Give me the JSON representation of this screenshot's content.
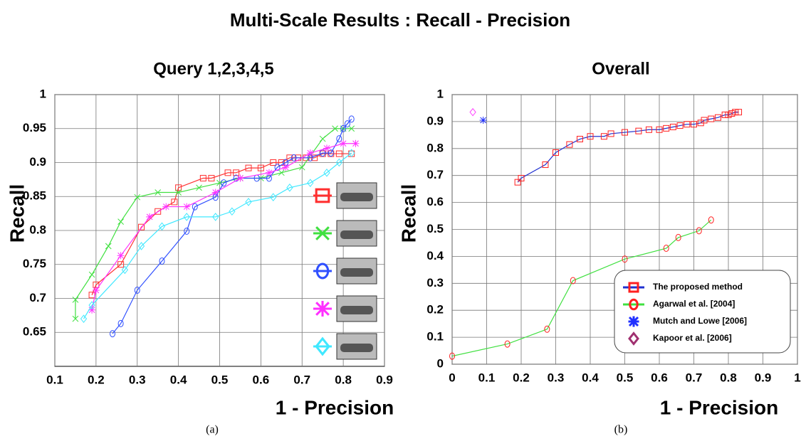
{
  "title": "Multi-Scale Results : Recall - Precision",
  "captions": [
    "(a)",
    "(b)"
  ],
  "chart_data": [
    {
      "type": "line",
      "title": "Query 1,2,3,4,5",
      "xlabel": "1 - Precision",
      "ylabel": "Recall",
      "xlim": [
        0.1,
        0.9
      ],
      "ylim": [
        0.6,
        1
      ],
      "xticks": [
        0.1,
        0.2,
        0.3,
        0.4,
        0.5,
        0.6,
        0.7,
        0.8,
        0.9
      ],
      "yticks": [
        0.65,
        0.7,
        0.75,
        0.8,
        0.85,
        0.9,
        0.95,
        1
      ],
      "grid": true,
      "legend": "right",
      "series": [
        {
          "color": "#ff3030",
          "marker": "square",
          "x": [
            0.19,
            0.2,
            0.26,
            0.31,
            0.35,
            0.39,
            0.4,
            0.46,
            0.48,
            0.52,
            0.54,
            0.57,
            0.6,
            0.63,
            0.65,
            0.67,
            0.69,
            0.71,
            0.73,
            0.75,
            0.77,
            0.79,
            0.82
          ],
          "values": [
            0.705,
            0.72,
            0.75,
            0.805,
            0.828,
            0.842,
            0.863,
            0.877,
            0.877,
            0.885,
            0.885,
            0.892,
            0.892,
            0.9,
            0.9,
            0.907,
            0.907,
            0.907,
            0.907,
            0.913,
            0.913,
            0.913,
            0.913
          ]
        },
        {
          "color": "#40e040",
          "marker": "x",
          "x": [
            0.15,
            0.15,
            0.19,
            0.23,
            0.26,
            0.3,
            0.35,
            0.4,
            0.45,
            0.5,
            0.55,
            0.6,
            0.65,
            0.7,
            0.75,
            0.78,
            0.8,
            0.82
          ],
          "values": [
            0.67,
            0.698,
            0.735,
            0.777,
            0.813,
            0.849,
            0.856,
            0.856,
            0.863,
            0.87,
            0.877,
            0.877,
            0.885,
            0.893,
            0.935,
            0.95,
            0.95,
            0.95
          ]
        },
        {
          "color": "#3050ff",
          "marker": "circle",
          "x": [
            0.24,
            0.26,
            0.3,
            0.36,
            0.42,
            0.44,
            0.49,
            0.51,
            0.54,
            0.59,
            0.62,
            0.64,
            0.66,
            0.68,
            0.72,
            0.75,
            0.77,
            0.79,
            0.8,
            0.81,
            0.82
          ],
          "values": [
            0.648,
            0.663,
            0.712,
            0.755,
            0.799,
            0.835,
            0.849,
            0.87,
            0.877,
            0.877,
            0.877,
            0.893,
            0.9,
            0.907,
            0.907,
            0.914,
            0.914,
            0.935,
            0.95,
            0.957,
            0.964
          ]
        },
        {
          "color": "#ff30ff",
          "marker": "star",
          "x": [
            0.19,
            0.2,
            0.26,
            0.33,
            0.37,
            0.42,
            0.49,
            0.55,
            0.62,
            0.66,
            0.72,
            0.76,
            0.8,
            0.83
          ],
          "values": [
            0.683,
            0.712,
            0.763,
            0.82,
            0.835,
            0.835,
            0.856,
            0.877,
            0.885,
            0.893,
            0.914,
            0.921,
            0.928,
            0.928
          ]
        },
        {
          "color": "#40e8ff",
          "marker": "diamond",
          "x": [
            0.17,
            0.19,
            0.27,
            0.31,
            0.36,
            0.42,
            0.49,
            0.53,
            0.57,
            0.63,
            0.67,
            0.72,
            0.76,
            0.79,
            0.82
          ],
          "values": [
            0.67,
            0.69,
            0.742,
            0.777,
            0.806,
            0.82,
            0.82,
            0.828,
            0.842,
            0.849,
            0.863,
            0.87,
            0.885,
            0.9,
            0.914
          ]
        }
      ]
    },
    {
      "type": "line",
      "title": "Overall",
      "xlabel": "1 - Precision",
      "ylabel": "Recall",
      "xlim": [
        0,
        1
      ],
      "ylim": [
        0,
        1
      ],
      "xticks": [
        0,
        0.1,
        0.2,
        0.3,
        0.4,
        0.5,
        0.6,
        0.7,
        0.8,
        0.9,
        1
      ],
      "yticks": [
        0,
        0.1,
        0.2,
        0.3,
        0.4,
        0.5,
        0.6,
        0.7,
        0.8,
        0.9,
        1
      ],
      "grid": true,
      "legend": "lower right",
      "series": [
        {
          "name": "The proposed method",
          "color": "#2030d0",
          "marker": "square",
          "marker_color": "#ff2020",
          "x": [
            0.19,
            0.2,
            0.27,
            0.3,
            0.34,
            0.37,
            0.4,
            0.44,
            0.46,
            0.5,
            0.54,
            0.57,
            0.6,
            0.62,
            0.64,
            0.66,
            0.68,
            0.7,
            0.72,
            0.73,
            0.75,
            0.77,
            0.79,
            0.8,
            0.81,
            0.82,
            0.83
          ],
          "values": [
            0.675,
            0.69,
            0.74,
            0.785,
            0.815,
            0.835,
            0.845,
            0.845,
            0.855,
            0.86,
            0.865,
            0.87,
            0.87,
            0.875,
            0.88,
            0.885,
            0.89,
            0.89,
            0.895,
            0.905,
            0.91,
            0.915,
            0.925,
            0.925,
            0.93,
            0.935,
            0.935
          ]
        },
        {
          "name": "Agarwal et al. [2004]",
          "color": "#40e040",
          "marker": "circle",
          "marker_color": "#ff2020",
          "x": [
            0,
            0.16,
            0.275,
            0.35,
            0.5,
            0.62,
            0.655,
            0.715,
            0.75
          ],
          "values": [
            0.03,
            0.075,
            0.13,
            0.31,
            0.39,
            0.43,
            0.47,
            0.495,
            0.535
          ]
        },
        {
          "name": "Mutch and Lowe [2006]",
          "color": "#2030ff",
          "marker": "star",
          "x": [
            0.09
          ],
          "values": [
            0.905
          ]
        },
        {
          "name": "Kapoor et al. [2006]",
          "color": "#ff40ff",
          "marker": "diamond",
          "legend_color": "#a03070",
          "x": [
            0.06
          ],
          "values": [
            0.935
          ]
        }
      ]
    }
  ]
}
